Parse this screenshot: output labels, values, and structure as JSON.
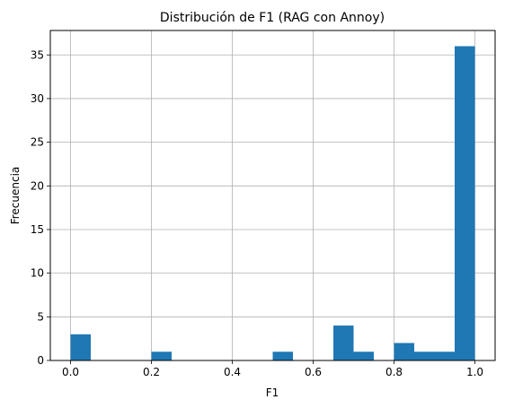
{
  "chart_data": {
    "type": "bar",
    "title": "Distribución de F1 (RAG con Annoy)",
    "xlabel": "F1",
    "ylabel": "Frecuencia",
    "bins": 20,
    "bin_edges": [
      0.0,
      0.05,
      0.1,
      0.15,
      0.2,
      0.25,
      0.3,
      0.35,
      0.4,
      0.45,
      0.5,
      0.55,
      0.6,
      0.65,
      0.7,
      0.75,
      0.8,
      0.85,
      0.9,
      0.95,
      1.0
    ],
    "counts": [
      3,
      0,
      0,
      0,
      1,
      0,
      0,
      0,
      0,
      0,
      1,
      0,
      0,
      4,
      1,
      0,
      2,
      1,
      1,
      36
    ],
    "xlim": [
      -0.05,
      1.05
    ],
    "ylim": [
      0,
      37.8
    ],
    "xticks": [
      0.0,
      0.2,
      0.4,
      0.6,
      0.8,
      1.0
    ],
    "xtick_labels": [
      "0.0",
      "0.2",
      "0.4",
      "0.6",
      "0.8",
      "1.0"
    ],
    "yticks": [
      0,
      5,
      10,
      15,
      20,
      25,
      30,
      35
    ],
    "ytick_labels": [
      "0",
      "5",
      "10",
      "15",
      "20",
      "25",
      "30",
      "35"
    ],
    "grid": true,
    "bar_color": "#1f77b4",
    "grid_color": "#b0b0b0"
  }
}
